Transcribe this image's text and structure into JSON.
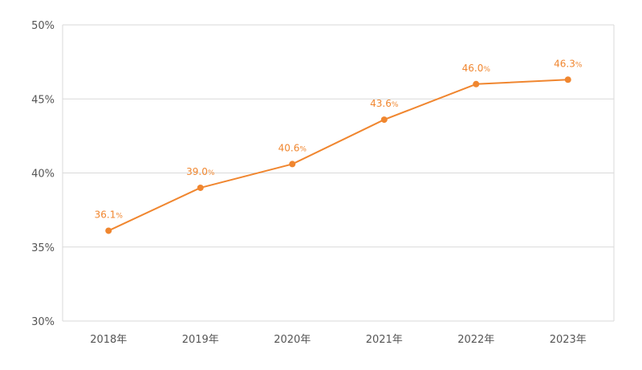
{
  "chart_data": {
    "type": "line",
    "title": "",
    "xlabel": "",
    "ylabel": "",
    "categories": [
      "2018年",
      "2019年",
      "2020年",
      "2021年",
      "2022年",
      "2023年"
    ],
    "series": [
      {
        "values": [
          36.1,
          39.0,
          40.6,
          43.6,
          46.0,
          46.3
        ],
        "labels": [
          "36.1",
          "39.0",
          "40.6",
          "43.6",
          "46.0",
          "46.3"
        ],
        "label_unit": "%",
        "color": "#f0862f"
      }
    ],
    "ylim": [
      30,
      50
    ],
    "yticks": [
      30,
      35,
      40,
      45,
      50
    ],
    "ytick_labels": [
      "30%",
      "35%",
      "40%",
      "45%",
      "50%"
    ],
    "grid": true,
    "legend": "none"
  }
}
